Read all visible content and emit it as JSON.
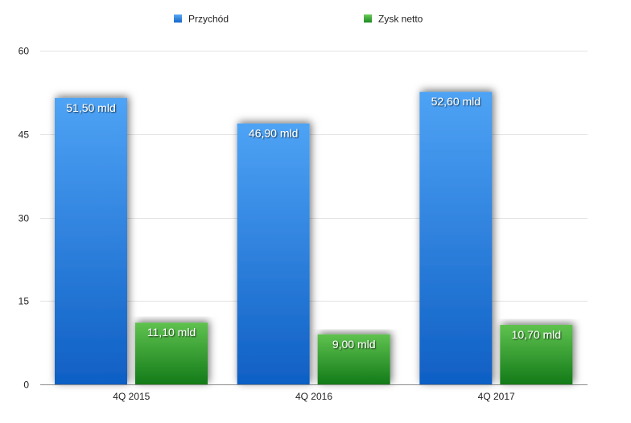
{
  "chart_data": {
    "type": "bar",
    "categories": [
      "4Q 2015",
      "4Q 2016",
      "4Q 2017"
    ],
    "series": [
      {
        "name": "Przychód",
        "values": [
          51.5,
          46.9,
          52.6
        ],
        "labels": [
          "51,50 mld",
          "46,90 mld",
          "52,60 mld"
        ],
        "color": "#2f7fe0"
      },
      {
        "name": "Zysk netto",
        "values": [
          11.1,
          9.0,
          10.7
        ],
        "labels": [
          "11,10 mld",
          "9,00 mld",
          "10,70 mld"
        ],
        "color": "#2e9e2e"
      }
    ],
    "yticks": [
      "0",
      "15",
      "30",
      "45",
      "60"
    ],
    "ylim": [
      0,
      60
    ],
    "grid": true,
    "legend": "top"
  }
}
